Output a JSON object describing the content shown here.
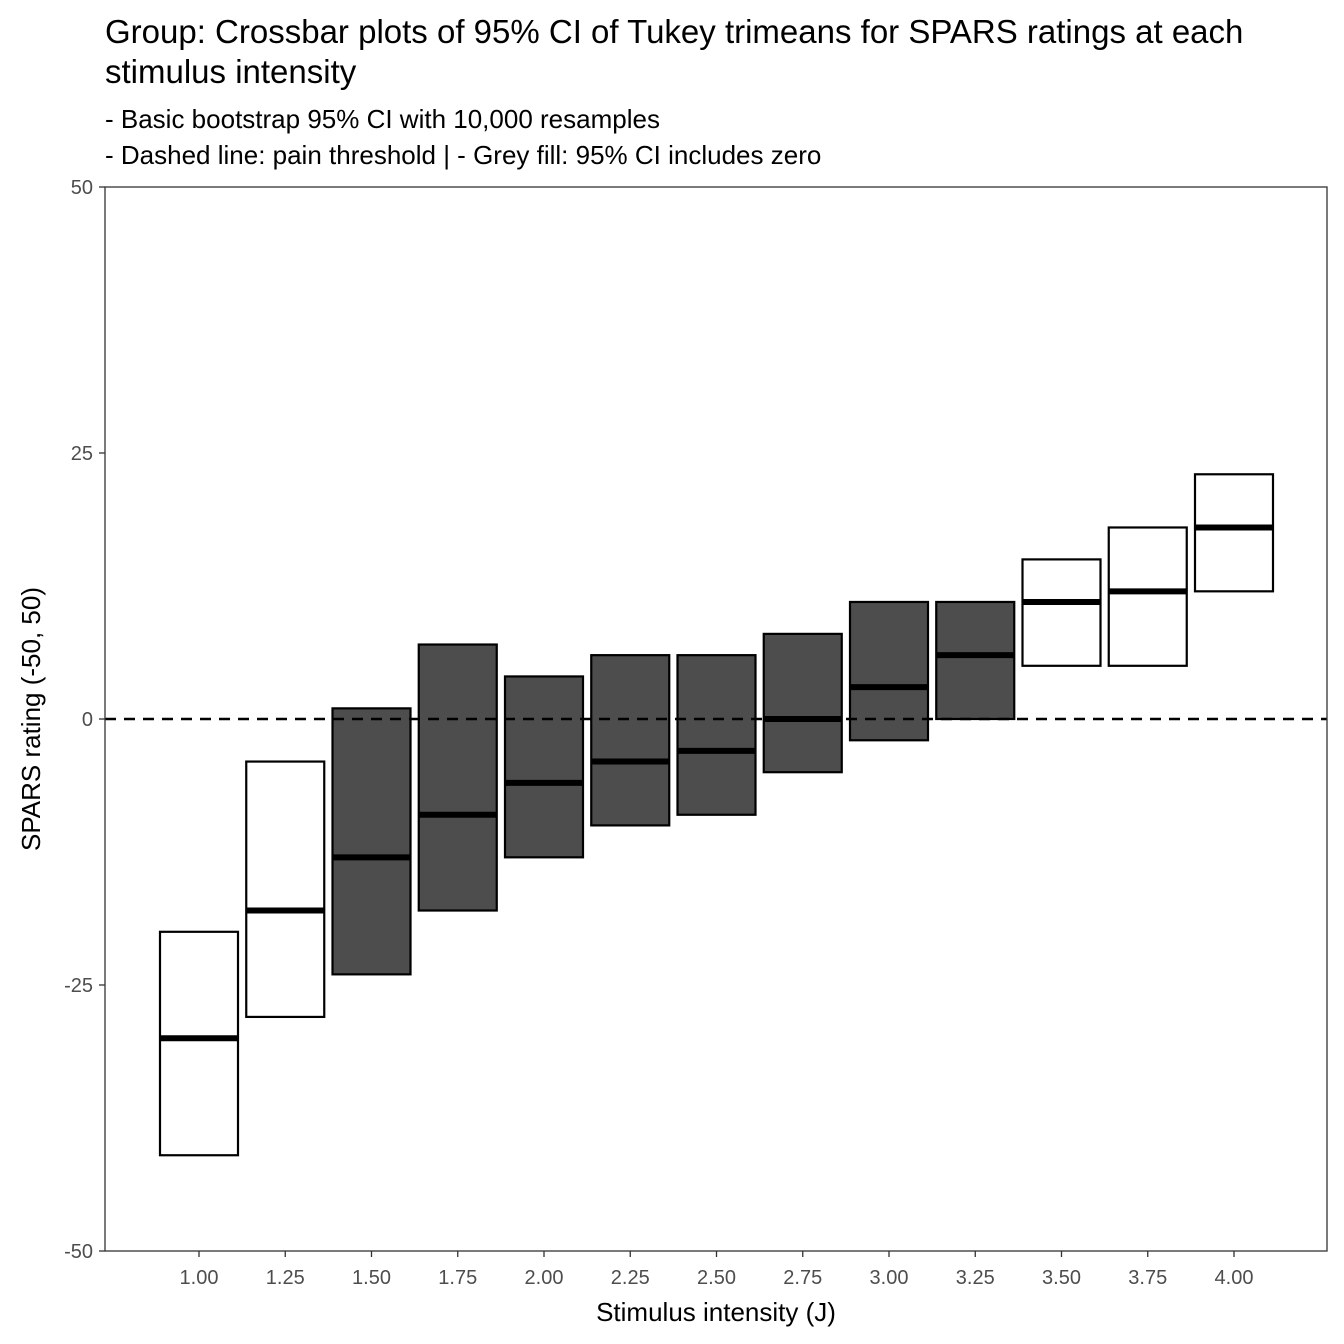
{
  "chart_data": {
    "type": "crossbar",
    "title": "Group: Crossbar plots of 95% CI of Tukey trimeans for SPARS ratings at each stimulus intensity",
    "subtitle_lines": [
      "- Basic bootstrap 95% CI with 10,000 resamples",
      "- Dashed line: pain threshold | - Grey fill: 95% CI includes zero"
    ],
    "xlabel": "Stimulus intensity (J)",
    "ylabel": "SPARS rating (-50, 50)",
    "ylim": [
      -50,
      50
    ],
    "yticks": [
      -50,
      -25,
      0,
      25,
      50
    ],
    "ytick_labels": [
      "-50",
      "-25",
      "0",
      "25",
      "50"
    ],
    "categories": [
      "1.00",
      "1.25",
      "1.50",
      "1.75",
      "2.00",
      "2.25",
      "2.50",
      "2.75",
      "3.00",
      "3.25",
      "3.50",
      "3.75",
      "4.00"
    ],
    "reference_line": 0,
    "grid": false,
    "colors": {
      "includes_zero_fill": "#4d4d4d",
      "excludes_zero_fill": "#ffffff",
      "outline": "#000000"
    },
    "bars": [
      {
        "x": "1.00",
        "trimean": -30,
        "lower": -41,
        "upper": -20,
        "includes_zero": false
      },
      {
        "x": "1.25",
        "trimean": -18,
        "lower": -28,
        "upper": -4,
        "includes_zero": false
      },
      {
        "x": "1.50",
        "trimean": -13,
        "lower": -24,
        "upper": 1,
        "includes_zero": true
      },
      {
        "x": "1.75",
        "trimean": -9,
        "lower": -18,
        "upper": 7,
        "includes_zero": true
      },
      {
        "x": "2.00",
        "trimean": -6,
        "lower": -13,
        "upper": 4,
        "includes_zero": true
      },
      {
        "x": "2.25",
        "trimean": -4,
        "lower": -10,
        "upper": 6,
        "includes_zero": true
      },
      {
        "x": "2.50",
        "trimean": -3,
        "lower": -9,
        "upper": 6,
        "includes_zero": true
      },
      {
        "x": "2.75",
        "trimean": 0,
        "lower": -5,
        "upper": 8,
        "includes_zero": true
      },
      {
        "x": "3.00",
        "trimean": 3,
        "lower": -2,
        "upper": 11,
        "includes_zero": true
      },
      {
        "x": "3.25",
        "trimean": 6,
        "lower": 0,
        "upper": 11,
        "includes_zero": true
      },
      {
        "x": "3.50",
        "trimean": 11,
        "lower": 5,
        "upper": 15,
        "includes_zero": false
      },
      {
        "x": "3.75",
        "trimean": 12,
        "lower": 5,
        "upper": 18,
        "includes_zero": false
      },
      {
        "x": "4.00",
        "trimean": 18,
        "lower": 12,
        "upper": 23,
        "includes_zero": false
      }
    ]
  }
}
